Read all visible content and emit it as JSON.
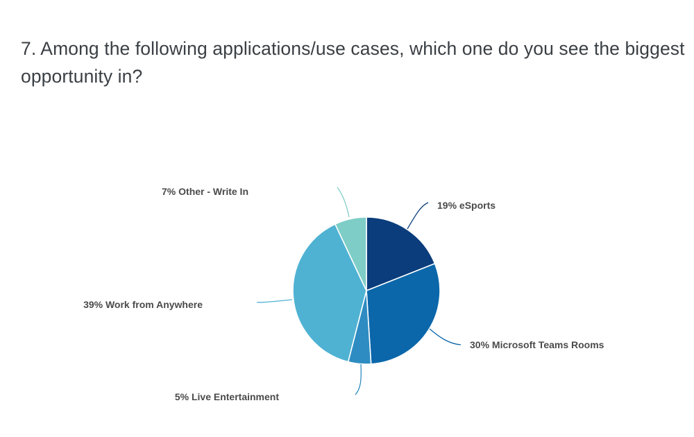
{
  "question": {
    "text": "7. Among the following applications/use cases, which one do you see the biggest opportunity in?"
  },
  "chart_data": {
    "type": "pie",
    "title": "7. Among the following applications/use cases, which one do you see the biggest opportunity in?",
    "start_angle_deg": 0,
    "direction": "clockwise",
    "slices": [
      {
        "label": "19% eSports",
        "category": "eSports",
        "value": 19,
        "color": "#0b3d7c"
      },
      {
        "label": "30% Microsoft Teams Rooms",
        "category": "Microsoft Teams Rooms",
        "value": 30,
        "color": "#0b67aa"
      },
      {
        "label": "5% Live Entertainment",
        "category": "Live Entertainment",
        "value": 5,
        "color": "#2e8cc2"
      },
      {
        "label": "39% Work from Anywhere",
        "category": "Work from Anywhere",
        "value": 39,
        "color": "#4fb2d3"
      },
      {
        "label": "7% Other - Write In",
        "category": "Other - Write In",
        "value": 7,
        "color": "#7ecdc6"
      }
    ]
  }
}
